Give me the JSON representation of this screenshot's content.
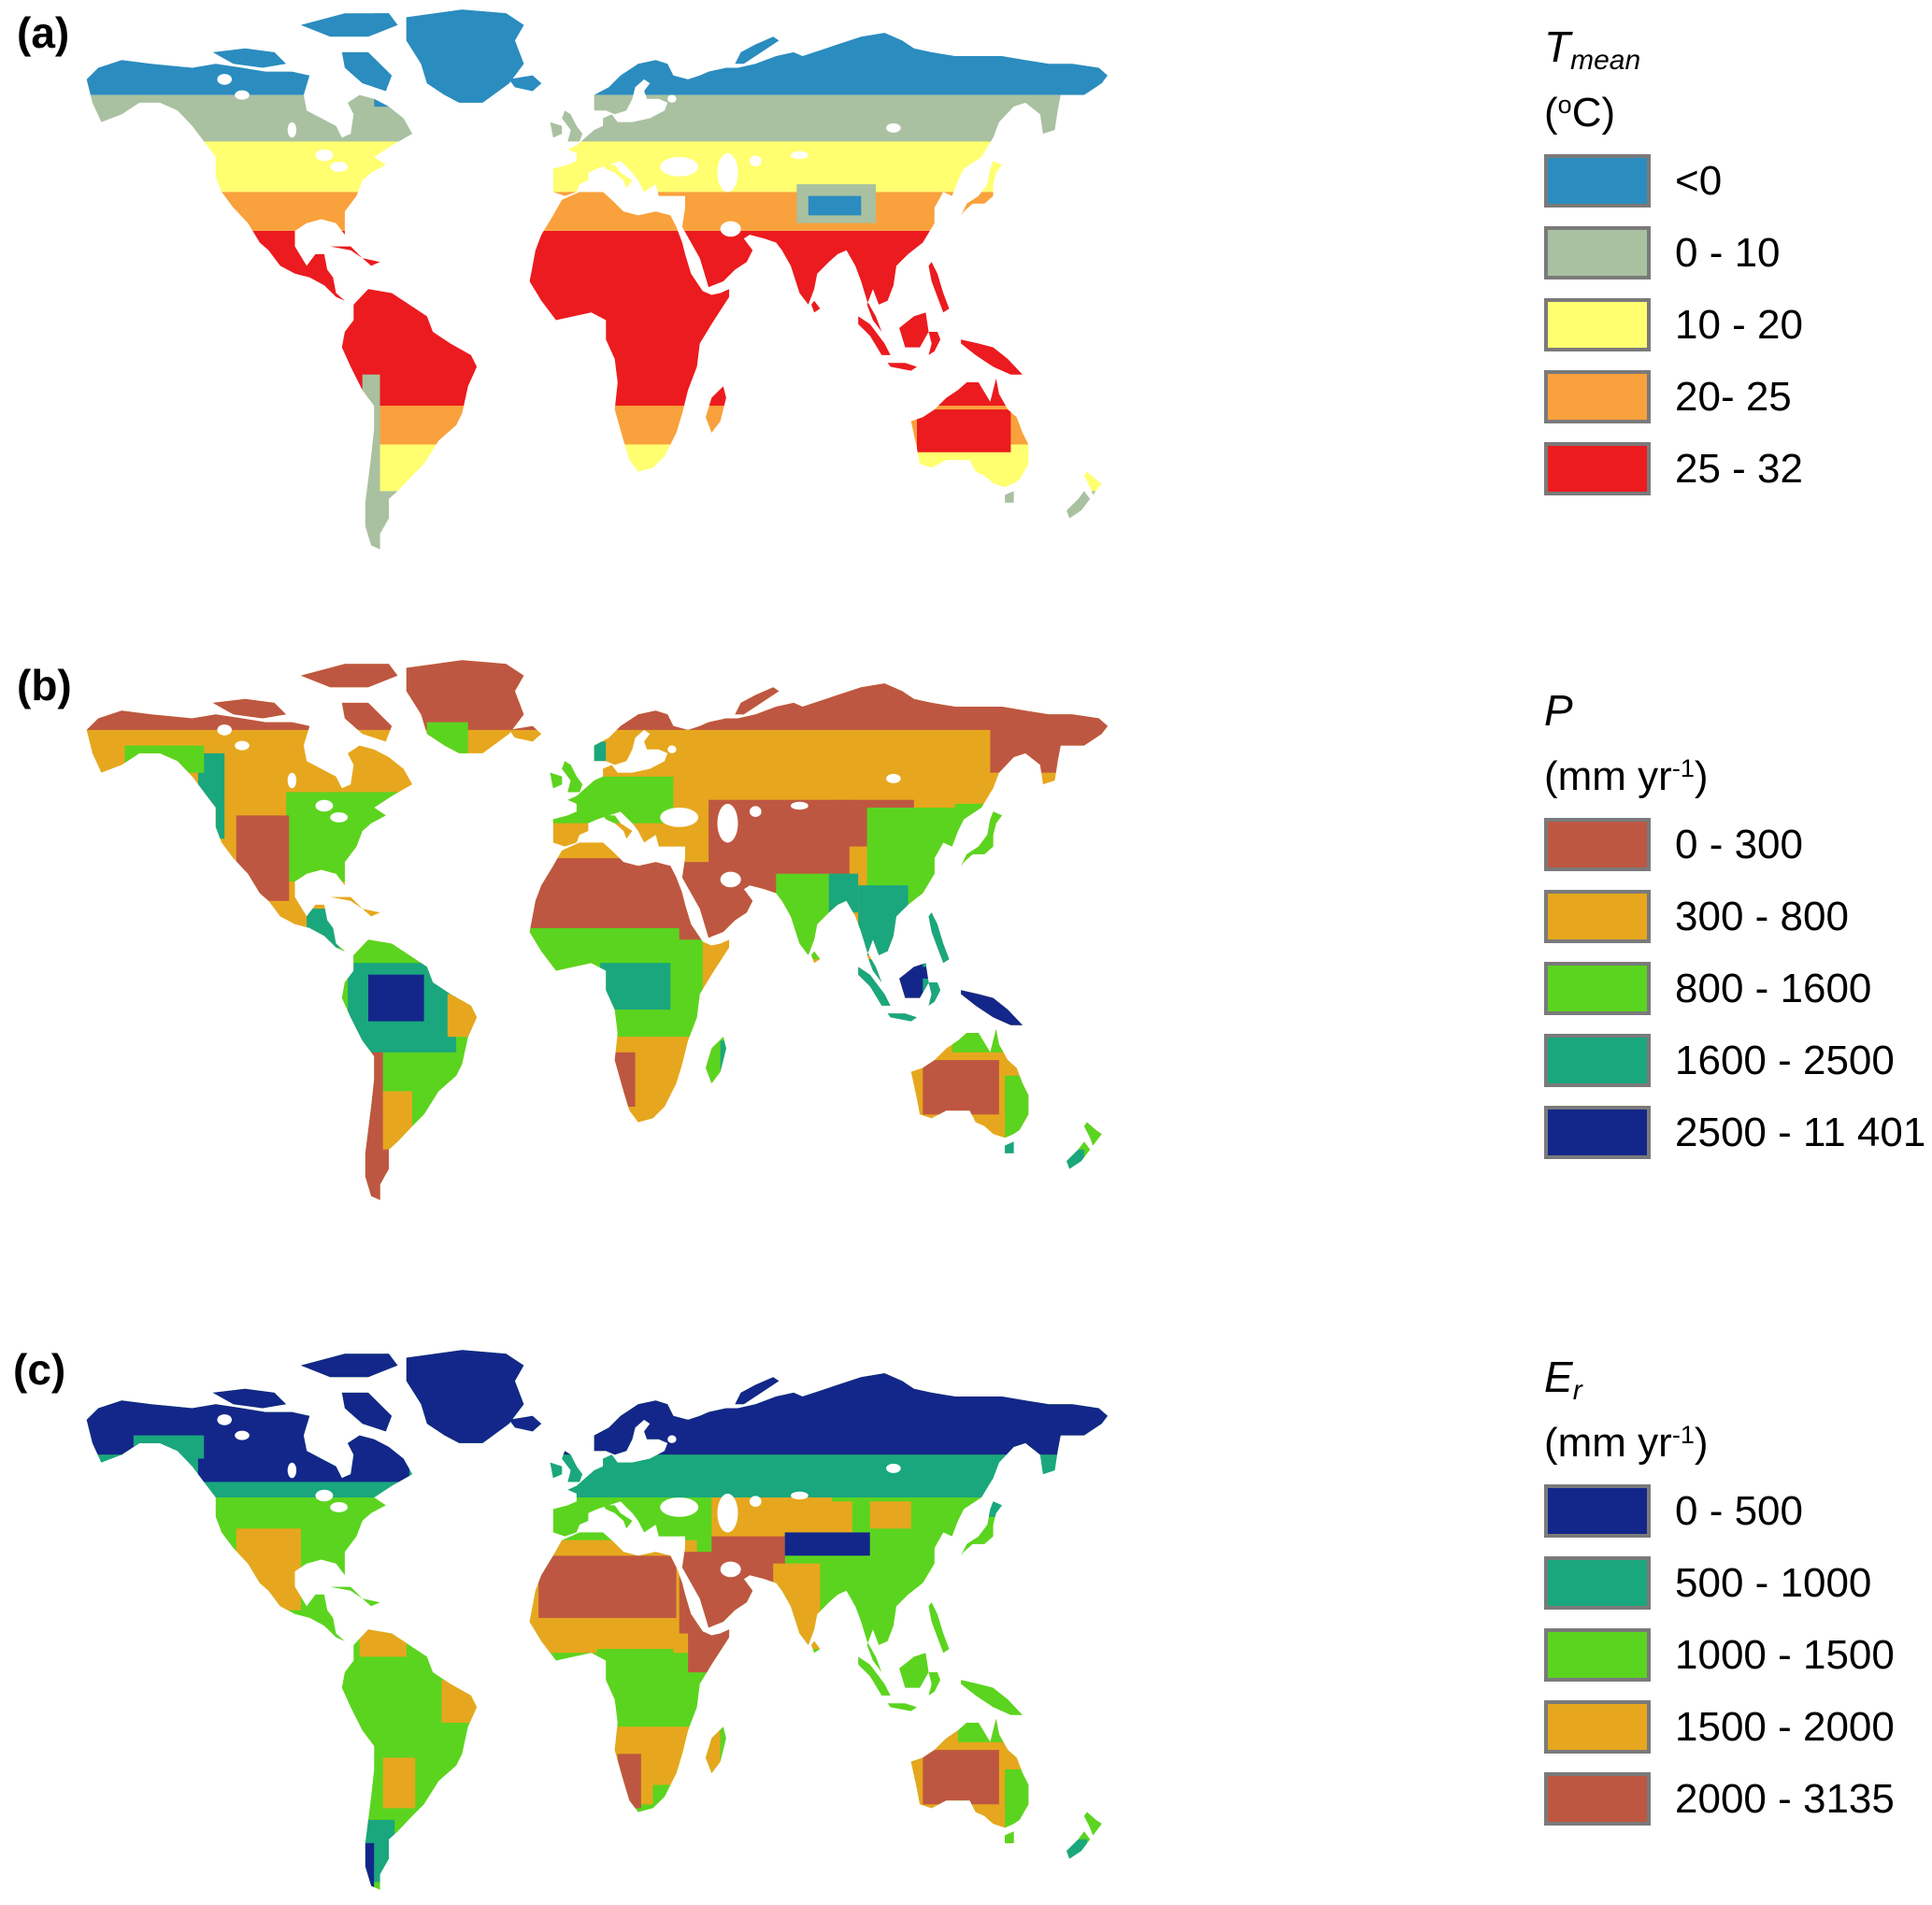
{
  "figure": {
    "panels": [
      {
        "label": "(a)",
        "legend": {
          "title_main": "T",
          "title_sub": "mean",
          "unit_prefix": "(",
          "unit_sup": "o",
          "unit_suffix": "C)",
          "entries": [
            {
              "label": "<0",
              "color": "#2B8CBF"
            },
            {
              "label": "0 - 10",
              "color": "#A9C1A0"
            },
            {
              "label": "10 - 20",
              "color": "#FFFF70"
            },
            {
              "label": "20- 25",
              "color": "#F9A13C"
            },
            {
              "label": "25 - 32",
              "color": "#EB1B1F"
            }
          ]
        }
      },
      {
        "label": "(b)",
        "legend": {
          "title_main": "P",
          "title_sub": "",
          "unit_prefix": "(mm yr",
          "unit_sup": "-1",
          "unit_suffix": ")",
          "entries": [
            {
              "label": "0 - 300",
              "color": "#BE5741"
            },
            {
              "label": "300 - 800",
              "color": "#E6A71E"
            },
            {
              "label": "800 - 1600",
              "color": "#5BD41F"
            },
            {
              "label": "1600 - 2500",
              "color": "#1AA77E"
            },
            {
              "label": "2500 - 11 401",
              "color": "#13278A"
            }
          ]
        }
      },
      {
        "label": "(c)",
        "legend": {
          "title_main": "E",
          "title_sub": "r",
          "unit_prefix": "(mm yr",
          "unit_sup": "-1",
          "unit_suffix": ")",
          "entries": [
            {
              "label": "0 - 500",
              "color": "#13278A"
            },
            {
              "label": "500 - 1000",
              "color": "#1AA77E"
            },
            {
              "label": "1000 - 1500",
              "color": "#5BD41F"
            },
            {
              "label": "1500 - 2000",
              "color": "#E6A71E"
            },
            {
              "label": "2000 - 3135",
              "color": "#BE5741"
            }
          ]
        }
      }
    ]
  }
}
